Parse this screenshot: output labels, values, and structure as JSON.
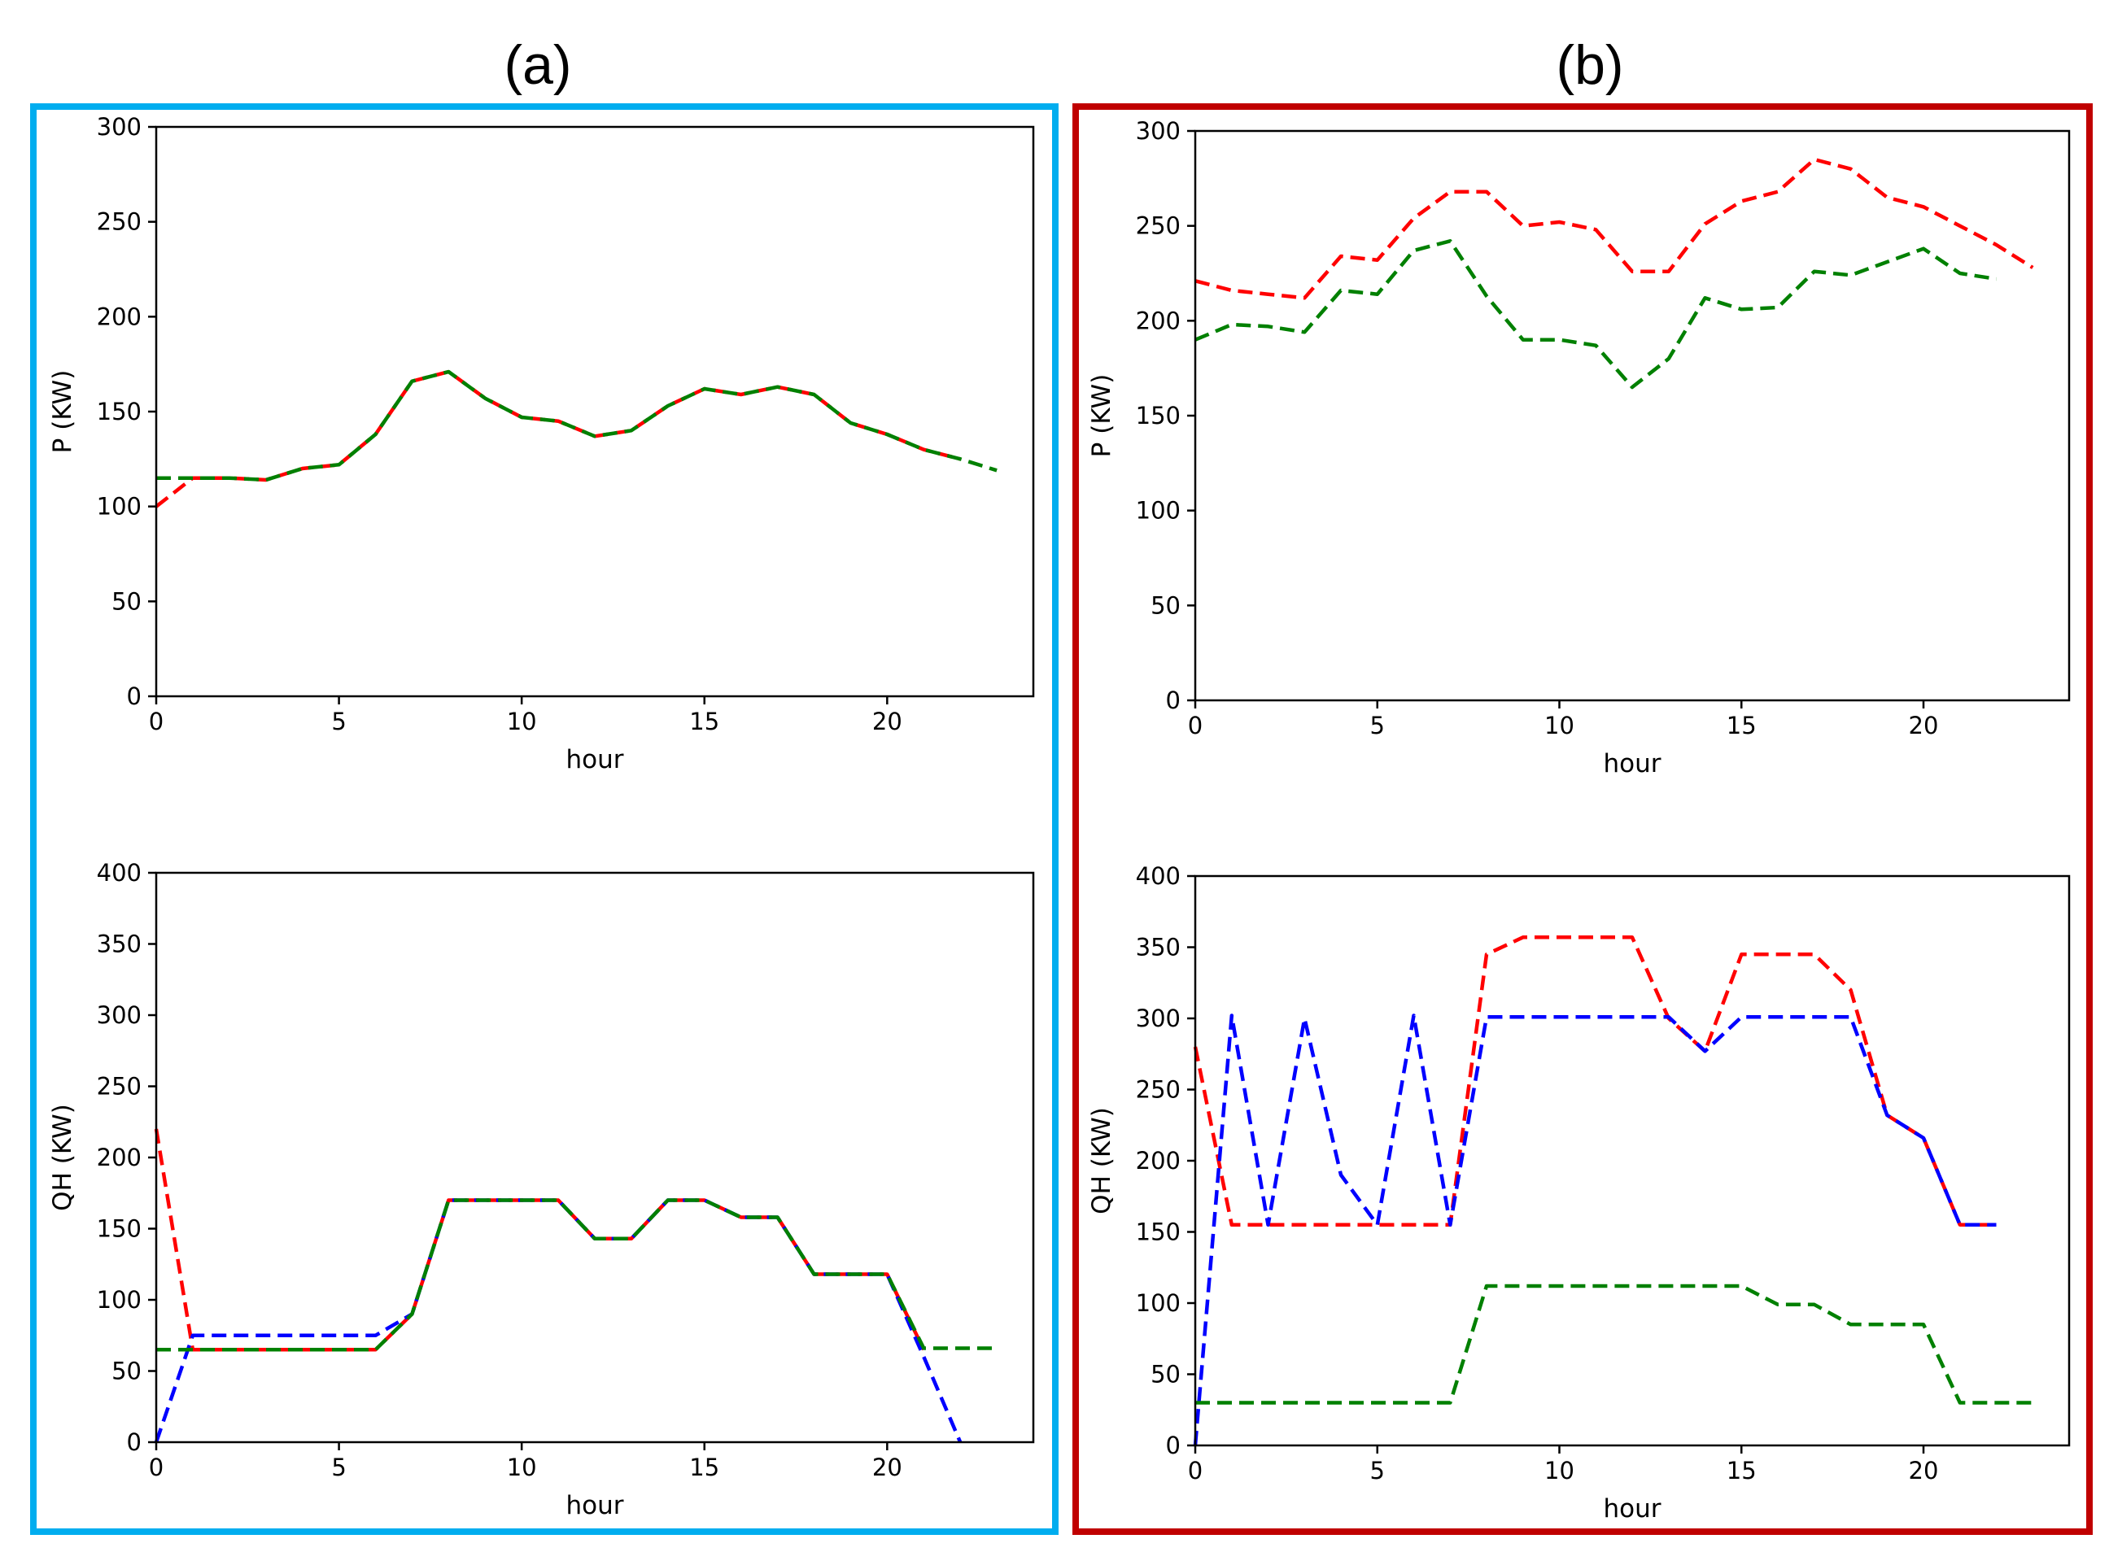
{
  "figure": {
    "colors": {
      "panel_a_border": "#00ADEF",
      "panel_b_border": "#C00000",
      "red": "#FF0000",
      "green": "#008000",
      "blue": "#0000FF"
    }
  },
  "panels": [
    {
      "label": "(a)",
      "border_color": "#00ADEF"
    },
    {
      "label": "(b)",
      "border_color": "#C00000"
    }
  ],
  "chart_data": [
    {
      "panel": "(a)",
      "position": "top",
      "type": "line",
      "xlabel": "hour",
      "ylabel": "P (KW)",
      "xlim": [
        0,
        24
      ],
      "ylim": [
        0,
        300
      ],
      "xticks": [
        0,
        5,
        10,
        15,
        20
      ],
      "yticks": [
        0,
        50,
        100,
        150,
        200,
        250,
        300
      ],
      "series": [
        {
          "name": "red",
          "color": "#FF0000",
          "x": [
            0,
            1,
            2,
            3,
            4,
            5,
            6,
            7,
            8,
            9,
            10,
            11,
            12,
            13,
            14,
            15,
            16,
            17,
            18,
            19,
            20,
            21,
            22
          ],
          "values": [
            100,
            115,
            115,
            114,
            120,
            122,
            138,
            166,
            171,
            157,
            147,
            145,
            137,
            140,
            153,
            162,
            159,
            163,
            159,
            144,
            138,
            130,
            125
          ]
        },
        {
          "name": "green",
          "color": "#008000",
          "x": [
            0,
            1,
            2,
            3,
            4,
            5,
            6,
            7,
            8,
            9,
            10,
            11,
            12,
            13,
            14,
            15,
            16,
            17,
            18,
            19,
            20,
            21,
            22,
            23
          ],
          "values": [
            115,
            115,
            115,
            114,
            120,
            122,
            138,
            166,
            171,
            157,
            147,
            145,
            137,
            140,
            153,
            162,
            159,
            163,
            159,
            144,
            138,
            130,
            125,
            119
          ]
        }
      ]
    },
    {
      "panel": "(a)",
      "position": "bottom",
      "type": "line",
      "xlabel": "hour",
      "ylabel": "QH (KW)",
      "xlim": [
        0,
        24
      ],
      "ylim": [
        0,
        400
      ],
      "xticks": [
        0,
        5,
        10,
        15,
        20
      ],
      "yticks": [
        0,
        50,
        100,
        150,
        200,
        250,
        300,
        350,
        400
      ],
      "series": [
        {
          "name": "red",
          "color": "#FF0000",
          "x": [
            0,
            1,
            2,
            3,
            4,
            5,
            6,
            7,
            8,
            9,
            10,
            11,
            12,
            13,
            14,
            15,
            16,
            17,
            18,
            19,
            20,
            21
          ],
          "values": [
            220,
            65,
            65,
            65,
            65,
            65,
            65,
            90,
            170,
            170,
            170,
            170,
            143,
            143,
            170,
            170,
            158,
            158,
            118,
            118,
            118,
            65
          ]
        },
        {
          "name": "blue",
          "color": "#0000FF",
          "x": [
            0,
            1,
            2,
            3,
            4,
            5,
            6,
            7,
            8,
            9,
            10,
            11,
            12,
            13,
            14,
            15,
            16,
            17,
            18,
            19,
            20,
            21,
            22
          ],
          "values": [
            0,
            75,
            75,
            75,
            75,
            75,
            75,
            90,
            170,
            170,
            170,
            170,
            143,
            143,
            170,
            170,
            158,
            158,
            118,
            118,
            118,
            60,
            0
          ]
        },
        {
          "name": "green",
          "color": "#008000",
          "x": [
            0,
            1,
            2,
            3,
            4,
            5,
            6,
            7,
            8,
            9,
            10,
            11,
            12,
            13,
            14,
            15,
            16,
            17,
            18,
            19,
            20,
            21,
            22,
            23
          ],
          "values": [
            65,
            65,
            65,
            65,
            65,
            65,
            65,
            90,
            170,
            170,
            170,
            170,
            143,
            143,
            170,
            170,
            158,
            158,
            118,
            118,
            118,
            66,
            66,
            66
          ]
        }
      ]
    },
    {
      "panel": "(b)",
      "position": "top",
      "type": "line",
      "xlabel": "hour",
      "ylabel": "P (KW)",
      "xlim": [
        0,
        24
      ],
      "ylim": [
        0,
        300
      ],
      "xticks": [
        0,
        5,
        10,
        15,
        20
      ],
      "yticks": [
        0,
        50,
        100,
        150,
        200,
        250,
        300
      ],
      "series": [
        {
          "name": "red",
          "color": "#FF0000",
          "x": [
            0,
            1,
            2,
            3,
            4,
            5,
            6,
            7,
            8,
            9,
            10,
            11,
            12,
            13,
            14,
            15,
            16,
            17,
            18,
            19,
            20,
            21,
            22,
            23
          ],
          "values": [
            221,
            216,
            214,
            212,
            234,
            232,
            254,
            268,
            268,
            250,
            252,
            248,
            226,
            226,
            251,
            263,
            268,
            285,
            280,
            265,
            260,
            250,
            240,
            228
          ]
        },
        {
          "name": "green",
          "color": "#008000",
          "x": [
            0,
            1,
            2,
            3,
            4,
            5,
            6,
            7,
            8,
            9,
            10,
            11,
            12,
            13,
            14,
            15,
            16,
            17,
            18,
            19,
            20,
            21,
            22
          ],
          "values": [
            190,
            198,
            197,
            194,
            216,
            214,
            237,
            242,
            213,
            190,
            190,
            187,
            165,
            180,
            212,
            206,
            207,
            226,
            224,
            231,
            238,
            225,
            222
          ]
        }
      ]
    },
    {
      "panel": "(b)",
      "position": "bottom",
      "type": "line",
      "xlabel": "hour",
      "ylabel": "QH (KW)",
      "xlim": [
        0,
        24
      ],
      "ylim": [
        0,
        400
      ],
      "xticks": [
        0,
        5,
        10,
        15,
        20
      ],
      "yticks": [
        0,
        50,
        100,
        150,
        200,
        250,
        300,
        350,
        400
      ],
      "series": [
        {
          "name": "red",
          "color": "#FF0000",
          "x": [
            0,
            1,
            2,
            3,
            4,
            5,
            6,
            7,
            8,
            9,
            10,
            11,
            12,
            13,
            14,
            15,
            16,
            17,
            18,
            19,
            20,
            21,
            22
          ],
          "values": [
            280,
            155,
            155,
            155,
            155,
            155,
            155,
            155,
            345,
            357,
            357,
            357,
            357,
            300,
            277,
            345,
            345,
            345,
            320,
            232,
            216,
            155,
            155
          ]
        },
        {
          "name": "blue",
          "color": "#0000FF",
          "x": [
            0,
            1,
            2,
            3,
            4,
            5,
            6,
            7,
            8,
            9,
            10,
            11,
            12,
            13,
            14,
            15,
            16,
            17,
            18,
            19,
            20,
            21,
            22
          ],
          "values": [
            0,
            302,
            155,
            300,
            190,
            155,
            302,
            155,
            301,
            301,
            301,
            301,
            301,
            301,
            277,
            301,
            301,
            301,
            301,
            232,
            216,
            155,
            155
          ]
        },
        {
          "name": "green",
          "color": "#008000",
          "x": [
            0,
            1,
            2,
            3,
            4,
            5,
            6,
            7,
            8,
            9,
            10,
            11,
            12,
            13,
            14,
            15,
            16,
            17,
            18,
            19,
            20,
            21,
            22,
            23
          ],
          "values": [
            30,
            30,
            30,
            30,
            30,
            30,
            30,
            30,
            112,
            112,
            112,
            112,
            112,
            112,
            112,
            112,
            99,
            99,
            85,
            85,
            85,
            30,
            30,
            30
          ]
        }
      ]
    }
  ]
}
